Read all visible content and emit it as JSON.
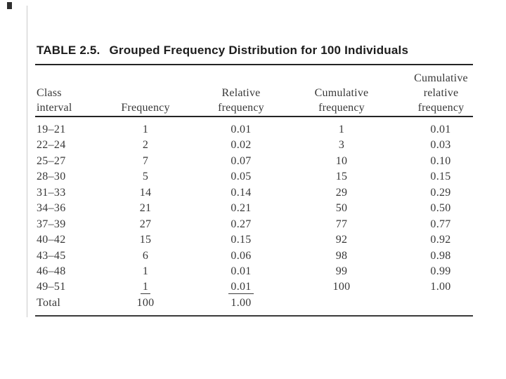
{
  "table": {
    "label": "TABLE 2.5.",
    "title": "Grouped Frequency Distribution for 100 Individuals",
    "columns": [
      {
        "name": "class-interval",
        "lines": [
          "Class",
          "interval"
        ]
      },
      {
        "name": "frequency",
        "lines": [
          "Frequency"
        ]
      },
      {
        "name": "relative-frequency",
        "lines": [
          "Relative",
          "frequency"
        ]
      },
      {
        "name": "cumulative-frequency",
        "lines": [
          "Cumulative",
          "frequency"
        ]
      },
      {
        "name": "cumulative-relative-frequency",
        "lines": [
          "Cumulative",
          "relative",
          "frequency"
        ]
      }
    ],
    "rows": [
      {
        "class_interval": "19–21",
        "frequency": "1",
        "relative_frequency": "0.01",
        "cumulative_frequency": "1",
        "cumulative_relative_frequency": "0.01"
      },
      {
        "class_interval": "22–24",
        "frequency": "2",
        "relative_frequency": "0.02",
        "cumulative_frequency": "3",
        "cumulative_relative_frequency": "0.03"
      },
      {
        "class_interval": "25–27",
        "frequency": "7",
        "relative_frequency": "0.07",
        "cumulative_frequency": "10",
        "cumulative_relative_frequency": "0.10"
      },
      {
        "class_interval": "28–30",
        "frequency": "5",
        "relative_frequency": "0.05",
        "cumulative_frequency": "15",
        "cumulative_relative_frequency": "0.15"
      },
      {
        "class_interval": "31–33",
        "frequency": "14",
        "relative_frequency": "0.14",
        "cumulative_frequency": "29",
        "cumulative_relative_frequency": "0.29"
      },
      {
        "class_interval": "34–36",
        "frequency": "21",
        "relative_frequency": "0.21",
        "cumulative_frequency": "50",
        "cumulative_relative_frequency": "0.50"
      },
      {
        "class_interval": "37–39",
        "frequency": "27",
        "relative_frequency": "0.27",
        "cumulative_frequency": "77",
        "cumulative_relative_frequency": "0.77"
      },
      {
        "class_interval": "40–42",
        "frequency": "15",
        "relative_frequency": "0.15",
        "cumulative_frequency": "92",
        "cumulative_relative_frequency": "0.92"
      },
      {
        "class_interval": "43–45",
        "frequency": "6",
        "relative_frequency": "0.06",
        "cumulative_frequency": "98",
        "cumulative_relative_frequency": "0.98"
      },
      {
        "class_interval": "46–48",
        "frequency": "1",
        "relative_frequency": "0.01",
        "cumulative_frequency": "99",
        "cumulative_relative_frequency": "0.99"
      },
      {
        "class_interval": "49–51",
        "frequency": "1",
        "relative_frequency": "0.01",
        "cumulative_frequency": "100",
        "cumulative_relative_frequency": "1.00"
      },
      {
        "class_interval": "Total",
        "frequency": "100",
        "relative_frequency": "1.00",
        "cumulative_frequency": "",
        "cumulative_relative_frequency": ""
      }
    ]
  },
  "chart_data": {
    "type": "table",
    "title": "TABLE 2.5. Grouped Frequency Distribution for 100 Individuals",
    "categories": [
      "19–21",
      "22–24",
      "25–27",
      "28–30",
      "31–33",
      "34–36",
      "37–39",
      "40–42",
      "43–45",
      "46–48",
      "49–51"
    ],
    "series": [
      {
        "name": "Frequency",
        "values": [
          1,
          2,
          7,
          5,
          14,
          21,
          27,
          15,
          6,
          1,
          1
        ]
      },
      {
        "name": "Relative frequency",
        "values": [
          0.01,
          0.02,
          0.07,
          0.05,
          0.14,
          0.21,
          0.27,
          0.15,
          0.06,
          0.01,
          0.01
        ]
      },
      {
        "name": "Cumulative frequency",
        "values": [
          1,
          3,
          10,
          15,
          29,
          50,
          77,
          92,
          98,
          99,
          100
        ]
      },
      {
        "name": "Cumulative relative frequency",
        "values": [
          0.01,
          0.03,
          0.1,
          0.15,
          0.29,
          0.5,
          0.77,
          0.92,
          0.98,
          0.99,
          1.0
        ]
      }
    ],
    "totals": {
      "Frequency": 100,
      "Relative frequency": 1.0
    }
  },
  "colors": {
    "background": "#ffffff",
    "title_text": "#1c1c1c",
    "body_text": "#383838",
    "rule": "#242424",
    "page_edge_line": "#c9c9c9"
  }
}
